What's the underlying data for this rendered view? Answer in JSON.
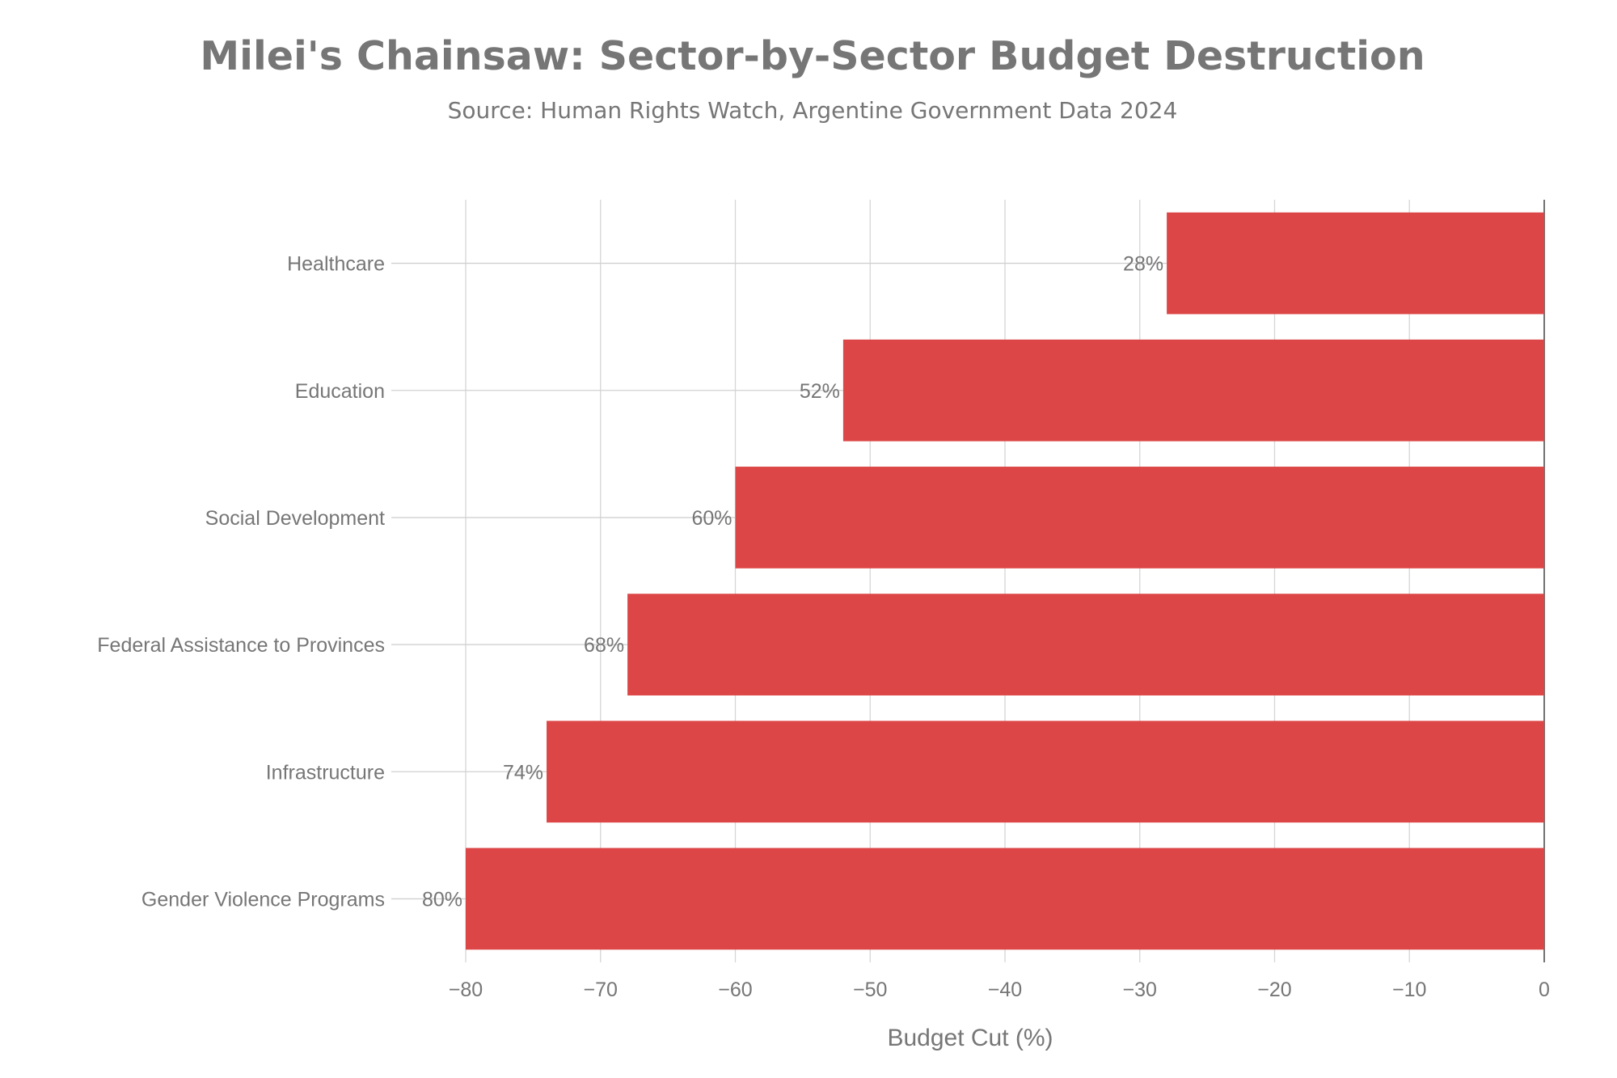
{
  "chart_data": {
    "type": "bar",
    "orientation": "horizontal",
    "title": "Milei's Chainsaw: Sector-by-Sector Budget Destruction",
    "subtitle": "Source: Human Rights Watch, Argentine Government Data 2024",
    "xlabel": "Budget Cut (%)",
    "ylabel": "",
    "xlim": [
      -80,
      0
    ],
    "xticks": [
      -80,
      -70,
      -60,
      -50,
      -40,
      -30,
      -20,
      -10,
      0
    ],
    "xtick_labels": [
      "−80",
      "−70",
      "−60",
      "−50",
      "−40",
      "−30",
      "−20",
      "−10",
      "0"
    ],
    "grid": true,
    "categories": [
      "Healthcare",
      "Education",
      "Social Development",
      "Federal Assistance to Provinces",
      "Infrastructure",
      "Gender Violence Programs"
    ],
    "values": [
      -28,
      -52,
      -60,
      -68,
      -74,
      -80
    ],
    "data_labels": [
      "28%",
      "52%",
      "60%",
      "68%",
      "74%",
      "80%"
    ],
    "bar_color": "#DC4646",
    "text_color": "#767676"
  }
}
